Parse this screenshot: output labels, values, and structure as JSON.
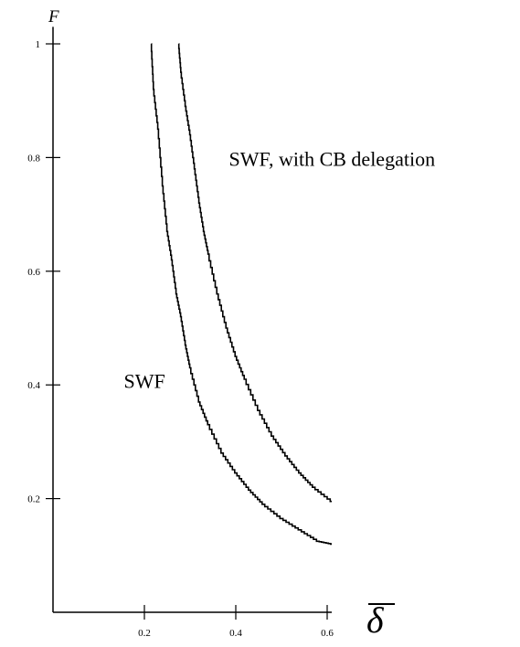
{
  "chart_data": {
    "type": "line",
    "title": "",
    "ylabel": "F",
    "xlabel": "δ",
    "x_ticks": [
      "0.2",
      "0.4",
      "0.6"
    ],
    "y_ticks": [
      "0.2",
      "0.4",
      "0.6",
      "0.8",
      "1"
    ],
    "xlim": [
      0,
      0.6
    ],
    "ylim": [
      0,
      1
    ],
    "grid": false,
    "series": [
      {
        "name": "SWF",
        "points": [
          [
            0.215,
            1.0
          ],
          [
            0.22,
            0.92
          ],
          [
            0.23,
            0.85
          ],
          [
            0.24,
            0.75
          ],
          [
            0.25,
            0.67
          ],
          [
            0.26,
            0.62
          ],
          [
            0.27,
            0.56
          ],
          [
            0.28,
            0.52
          ],
          [
            0.29,
            0.47
          ],
          [
            0.3,
            0.43
          ],
          [
            0.32,
            0.37
          ],
          [
            0.34,
            0.33
          ],
          [
            0.37,
            0.28
          ],
          [
            0.4,
            0.245
          ],
          [
            0.43,
            0.215
          ],
          [
            0.46,
            0.19
          ],
          [
            0.5,
            0.165
          ],
          [
            0.54,
            0.145
          ],
          [
            0.58,
            0.125
          ],
          [
            0.61,
            0.12
          ]
        ]
      },
      {
        "name": "SWF, with CB delegation",
        "points": [
          [
            0.275,
            1.0
          ],
          [
            0.28,
            0.95
          ],
          [
            0.29,
            0.89
          ],
          [
            0.3,
            0.84
          ],
          [
            0.31,
            0.78
          ],
          [
            0.32,
            0.72
          ],
          [
            0.33,
            0.67
          ],
          [
            0.34,
            0.63
          ],
          [
            0.36,
            0.56
          ],
          [
            0.38,
            0.5
          ],
          [
            0.4,
            0.45
          ],
          [
            0.42,
            0.41
          ],
          [
            0.45,
            0.355
          ],
          [
            0.48,
            0.31
          ],
          [
            0.51,
            0.275
          ],
          [
            0.54,
            0.245
          ],
          [
            0.57,
            0.22
          ],
          [
            0.61,
            0.195
          ]
        ]
      }
    ],
    "annotations": [
      {
        "text": "SWF, with CB delegation",
        "x": 0.385,
        "y": 0.785
      },
      {
        "text": "SWF",
        "x": 0.155,
        "y": 0.395
      }
    ]
  }
}
